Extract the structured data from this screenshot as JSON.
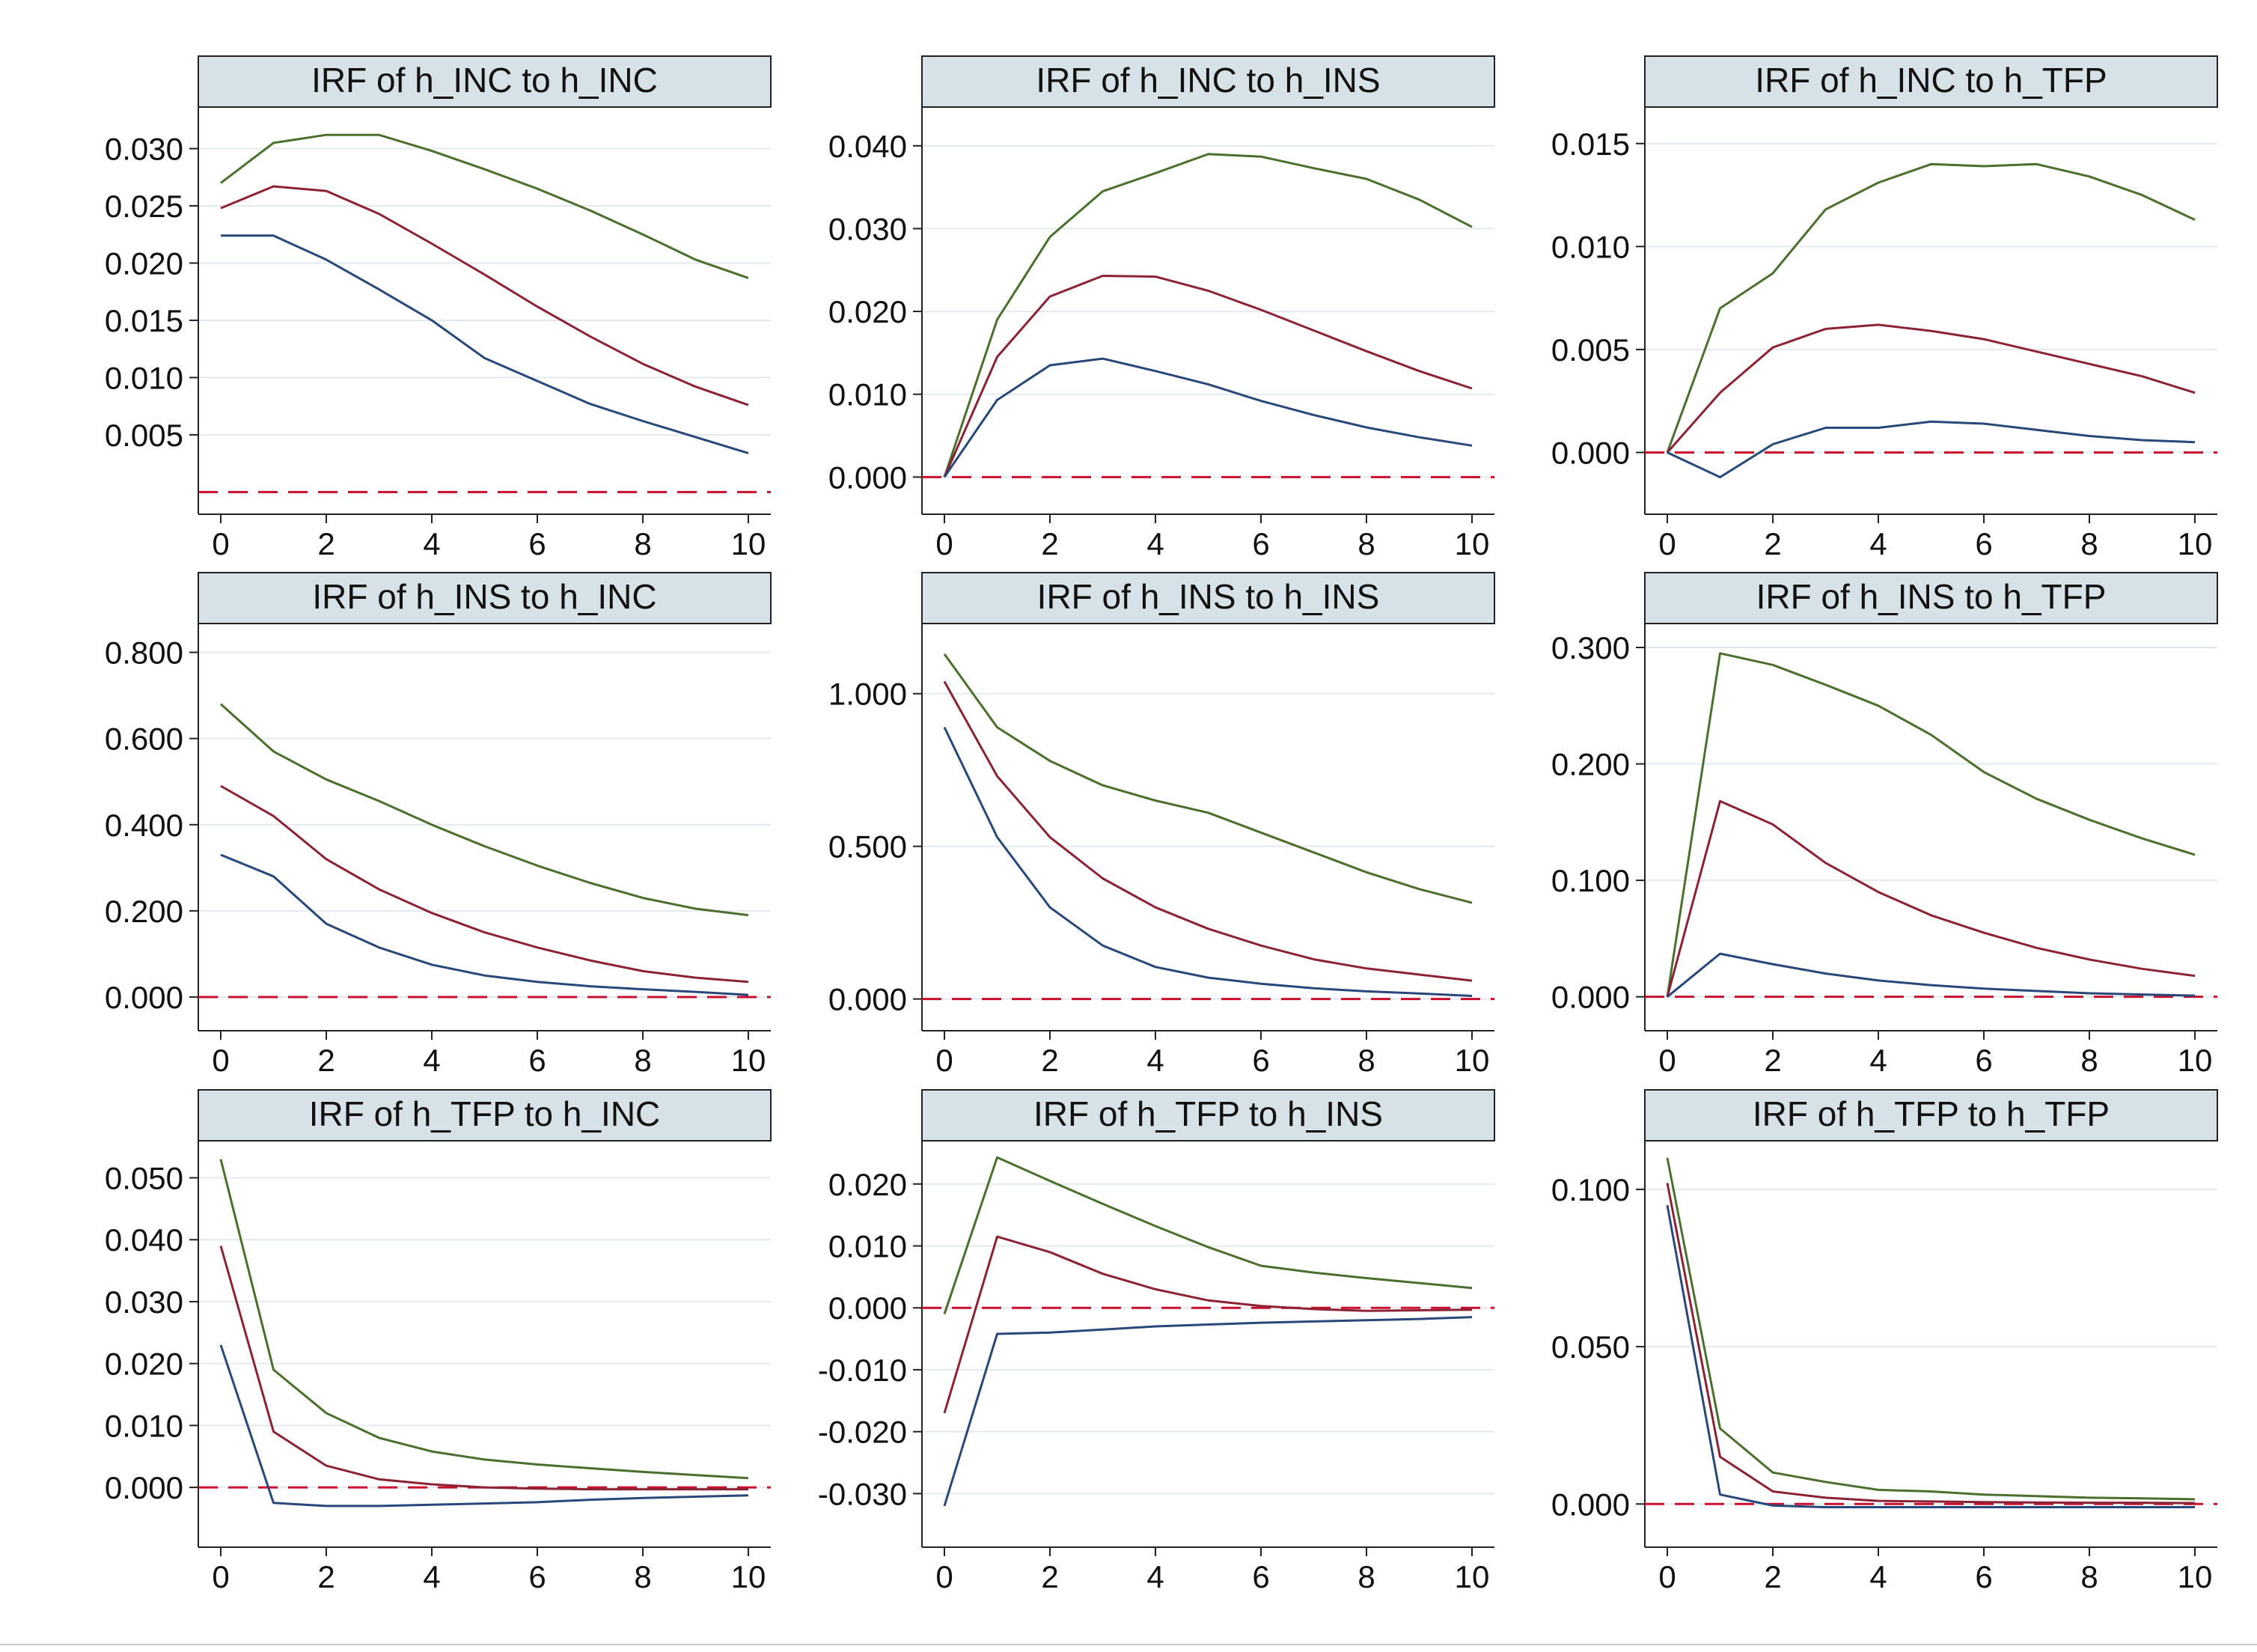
{
  "colors": {
    "upper": "#4b6f2c",
    "irf": "#8b2335",
    "lower": "#28487a",
    "zero_line": "#c8102e",
    "title_bg": "#d7e2e8",
    "grid": "#e4eaee",
    "axis": "#222222"
  },
  "chart_data": [
    {
      "type": "line",
      "title": "IRF of h_INC to h_INC",
      "x": [
        0,
        1,
        2,
        3,
        4,
        5,
        6,
        7,
        8,
        9,
        10
      ],
      "xticks": [
        0,
        2,
        4,
        6,
        8,
        10
      ],
      "yticks": [
        0.005,
        0.01,
        0.015,
        0.02,
        0.025,
        0.03
      ],
      "ytick_labels": [
        "0.005",
        "0.010",
        "0.015",
        "0.020",
        "0.025",
        "0.030"
      ],
      "ylim": [
        -0.0005,
        0.0335
      ],
      "series": [
        {
          "name": "upper",
          "values": [
            0.027,
            0.0305,
            0.0312,
            0.0312,
            0.0298,
            0.0282,
            0.0265,
            0.0246,
            0.0225,
            0.0203,
            0.0187
          ]
        },
        {
          "name": "irf",
          "values": [
            0.0248,
            0.0267,
            0.0263,
            0.0243,
            0.0217,
            0.019,
            0.0162,
            0.0136,
            0.0112,
            0.0092,
            0.0076
          ]
        },
        {
          "name": "lower",
          "values": [
            0.0224,
            0.0224,
            0.0203,
            0.0177,
            0.015,
            0.0117,
            0.0097,
            0.0077,
            0.0062,
            0.0048,
            0.0034
          ]
        }
      ]
    },
    {
      "type": "line",
      "title": "IRF of h_INC to h_INS",
      "x": [
        0,
        1,
        2,
        3,
        4,
        5,
        6,
        7,
        8,
        9,
        10
      ],
      "xticks": [
        0,
        2,
        4,
        6,
        8,
        10
      ],
      "yticks": [
        0.0,
        0.01,
        0.02,
        0.03,
        0.04
      ],
      "ytick_labels": [
        "0.000",
        "0.010",
        "0.020",
        "0.030",
        "0.040"
      ],
      "ylim": [
        -0.0025,
        0.0445
      ],
      "series": [
        {
          "name": "upper",
          "values": [
            0.0,
            0.019,
            0.029,
            0.0345,
            0.0367,
            0.039,
            0.0387,
            0.0373,
            0.036,
            0.0335,
            0.0302
          ]
        },
        {
          "name": "irf",
          "values": [
            0.0,
            0.0145,
            0.0218,
            0.0243,
            0.0242,
            0.0225,
            0.0202,
            0.0177,
            0.0152,
            0.0128,
            0.0107
          ]
        },
        {
          "name": "lower",
          "values": [
            0.0,
            0.0093,
            0.0135,
            0.0143,
            0.0128,
            0.0112,
            0.0092,
            0.0075,
            0.006,
            0.0048,
            0.0038
          ]
        }
      ]
    },
    {
      "type": "line",
      "title": "IRF of h_INC to h_TFP",
      "x": [
        0,
        1,
        2,
        3,
        4,
        5,
        6,
        7,
        8,
        9,
        10
      ],
      "xticks": [
        0,
        2,
        4,
        6,
        8,
        10
      ],
      "yticks": [
        0.0,
        0.005,
        0.01,
        0.015
      ],
      "ytick_labels": [
        "0.000",
        "0.005",
        "0.010",
        "0.015"
      ],
      "ylim": [
        -0.0022,
        0.0167
      ],
      "series": [
        {
          "name": "upper",
          "values": [
            0.0,
            0.007,
            0.0087,
            0.0118,
            0.0131,
            0.014,
            0.0139,
            0.014,
            0.0134,
            0.0125,
            0.0113
          ]
        },
        {
          "name": "irf",
          "values": [
            0.0,
            0.0029,
            0.0051,
            0.006,
            0.0062,
            0.0059,
            0.0055,
            0.0049,
            0.0043,
            0.0037,
            0.0029
          ]
        },
        {
          "name": "lower",
          "values": [
            0.0,
            -0.0012,
            0.0004,
            0.0012,
            0.0012,
            0.0015,
            0.0014,
            0.0011,
            0.0008,
            0.0006,
            0.0005
          ]
        }
      ]
    },
    {
      "type": "line",
      "title": "IRF of h_INS to h_INC",
      "x": [
        0,
        1,
        2,
        3,
        4,
        5,
        6,
        7,
        8,
        9,
        10
      ],
      "xticks": [
        0,
        2,
        4,
        6,
        8,
        10
      ],
      "yticks": [
        0.0,
        0.2,
        0.4,
        0.6,
        0.8
      ],
      "ytick_labels": [
        "0.000",
        "0.200",
        "0.400",
        "0.600",
        "0.800"
      ],
      "ylim": [
        -0.04,
        0.86
      ],
      "series": [
        {
          "name": "upper",
          "values": [
            0.68,
            0.57,
            0.505,
            0.455,
            0.4,
            0.35,
            0.305,
            0.265,
            0.23,
            0.205,
            0.19
          ]
        },
        {
          "name": "irf",
          "values": [
            0.49,
            0.42,
            0.32,
            0.25,
            0.195,
            0.15,
            0.115,
            0.085,
            0.06,
            0.045,
            0.035
          ]
        },
        {
          "name": "lower",
          "values": [
            0.33,
            0.28,
            0.17,
            0.115,
            0.075,
            0.05,
            0.035,
            0.025,
            0.018,
            0.012,
            0.005
          ]
        }
      ]
    },
    {
      "type": "line",
      "title": "IRF of h_INS to h_INS",
      "x": [
        0,
        1,
        2,
        3,
        4,
        5,
        6,
        7,
        8,
        9,
        10
      ],
      "xticks": [
        0,
        2,
        4,
        6,
        8,
        10
      ],
      "yticks": [
        0.0,
        0.5,
        1.0
      ],
      "ytick_labels": [
        "0.000",
        "0.500",
        "1.000"
      ],
      "ylim": [
        -0.05,
        1.22
      ],
      "series": [
        {
          "name": "upper",
          "values": [
            1.13,
            0.89,
            0.78,
            0.7,
            0.65,
            0.61,
            0.545,
            0.48,
            0.415,
            0.36,
            0.315
          ]
        },
        {
          "name": "irf",
          "values": [
            1.04,
            0.73,
            0.53,
            0.395,
            0.3,
            0.23,
            0.175,
            0.13,
            0.1,
            0.08,
            0.06
          ]
        },
        {
          "name": "lower",
          "values": [
            0.89,
            0.53,
            0.3,
            0.175,
            0.105,
            0.07,
            0.05,
            0.035,
            0.025,
            0.018,
            0.01
          ]
        }
      ]
    },
    {
      "type": "line",
      "title": "IRF of h_INS to h_TFP",
      "x": [
        0,
        1,
        2,
        3,
        4,
        5,
        6,
        7,
        8,
        9,
        10
      ],
      "xticks": [
        0,
        2,
        4,
        6,
        8,
        10
      ],
      "yticks": [
        0.0,
        0.1,
        0.2,
        0.3
      ],
      "ytick_labels": [
        "0.000",
        "0.100",
        "0.200",
        "0.300"
      ],
      "ylim": [
        -0.015,
        0.318
      ],
      "series": [
        {
          "name": "upper",
          "values": [
            0.0,
            0.295,
            0.285,
            0.268,
            0.25,
            0.225,
            0.193,
            0.17,
            0.152,
            0.136,
            0.122
          ]
        },
        {
          "name": "irf",
          "values": [
            0.0,
            0.168,
            0.148,
            0.115,
            0.09,
            0.07,
            0.055,
            0.042,
            0.032,
            0.024,
            0.018
          ]
        },
        {
          "name": "lower",
          "values": [
            0.0,
            0.037,
            0.028,
            0.02,
            0.014,
            0.01,
            0.007,
            0.005,
            0.003,
            0.002,
            0.001
          ]
        }
      ]
    },
    {
      "type": "line",
      "title": "IRF of h_TFP to h_INC",
      "x": [
        0,
        1,
        2,
        3,
        4,
        5,
        6,
        7,
        8,
        9,
        10
      ],
      "xticks": [
        0,
        2,
        4,
        6,
        8,
        10
      ],
      "yticks": [
        0.0,
        0.01,
        0.02,
        0.03,
        0.04,
        0.05
      ],
      "ytick_labels": [
        "0.000",
        "0.010",
        "0.020",
        "0.030",
        "0.040",
        "0.050"
      ],
      "ylim": [
        -0.007,
        0.0555
      ],
      "series": [
        {
          "name": "upper",
          "values": [
            0.053,
            0.019,
            0.012,
            0.008,
            0.0058,
            0.0045,
            0.0037,
            0.0031,
            0.0025,
            0.002,
            0.0015
          ]
        },
        {
          "name": "irf",
          "values": [
            0.039,
            0.009,
            0.0035,
            0.0013,
            0.0005,
            0.0,
            -0.0002,
            -0.0003,
            -0.0003,
            -0.0003,
            -0.0003
          ]
        },
        {
          "name": "lower",
          "values": [
            0.023,
            -0.0025,
            -0.003,
            -0.003,
            -0.0028,
            -0.0026,
            -0.0024,
            -0.002,
            -0.0017,
            -0.0015,
            -0.0013
          ]
        }
      ]
    },
    {
      "type": "line",
      "title": "IRF of h_TFP to h_INS",
      "x": [
        0,
        1,
        2,
        3,
        4,
        5,
        6,
        7,
        8,
        9,
        10
      ],
      "xticks": [
        0,
        2,
        4,
        6,
        8,
        10
      ],
      "yticks": [
        -0.03,
        -0.02,
        -0.01,
        0.0,
        0.01,
        0.02
      ],
      "ytick_labels": [
        "-0.030",
        "-0.020",
        "-0.010",
        "0.000",
        "0.010",
        "0.020"
      ],
      "ylim": [
        -0.036,
        0.0265
      ],
      "series": [
        {
          "name": "upper",
          "values": [
            -0.001,
            0.0243,
            0.0205,
            0.0168,
            0.0132,
            0.0098,
            0.0068,
            0.0057,
            0.0048,
            0.004,
            0.0032
          ]
        },
        {
          "name": "irf",
          "values": [
            -0.017,
            0.0115,
            0.009,
            0.0055,
            0.003,
            0.0012,
            0.0003,
            -0.0002,
            -0.0005,
            -0.0004,
            -0.0003
          ]
        },
        {
          "name": "lower",
          "values": [
            -0.032,
            -0.0042,
            -0.004,
            -0.0035,
            -0.003,
            -0.0027,
            -0.0024,
            -0.0022,
            -0.002,
            -0.0018,
            -0.0015
          ]
        }
      ]
    },
    {
      "type": "line",
      "title": "IRF of h_TFP to h_TFP",
      "x": [
        0,
        1,
        2,
        3,
        4,
        5,
        6,
        7,
        8,
        9,
        10
      ],
      "xticks": [
        0,
        2,
        4,
        6,
        8,
        10
      ],
      "yticks": [
        0.0,
        0.05,
        0.1
      ],
      "ytick_labels": [
        "0.000",
        "0.050",
        "0.100"
      ],
      "ylim": [
        -0.0085,
        0.1145
      ],
      "series": [
        {
          "name": "upper",
          "values": [
            0.11,
            0.024,
            0.01,
            0.007,
            0.0045,
            0.004,
            0.003,
            0.0025,
            0.002,
            0.0018,
            0.0015
          ]
        },
        {
          "name": "irf",
          "values": [
            0.102,
            0.015,
            0.004,
            0.002,
            0.001,
            0.0008,
            0.0006,
            0.0005,
            0.0004,
            0.0004,
            0.0003
          ]
        },
        {
          "name": "lower",
          "values": [
            0.095,
            0.003,
            -0.0005,
            -0.001,
            -0.001,
            -0.001,
            -0.001,
            -0.001,
            -0.001,
            -0.001,
            -0.001
          ]
        }
      ]
    }
  ]
}
